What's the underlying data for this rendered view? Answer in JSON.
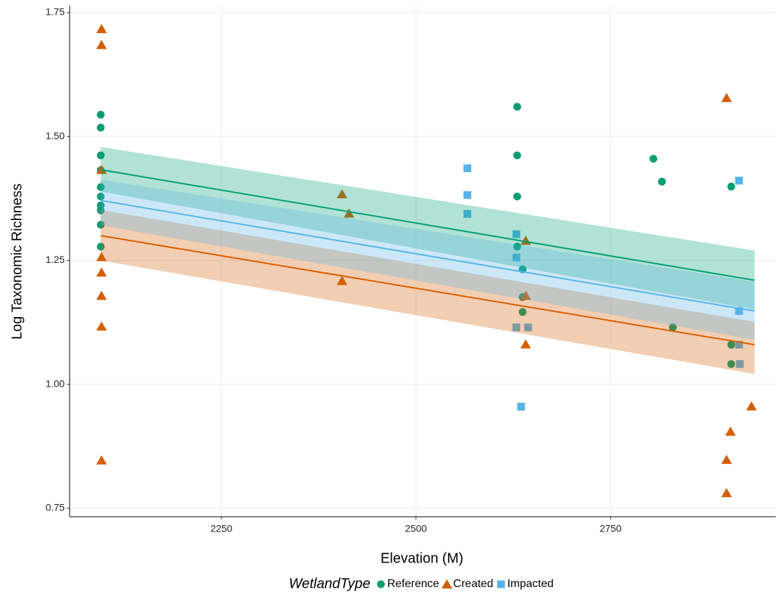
{
  "chart_data": {
    "type": "scatter",
    "x_label": "Elevation (M)",
    "y_label": "Log Taxonomic Richness",
    "legend_title": "WetlandType",
    "xlim": [
      2055,
      2962
    ],
    "ylim": [
      0.733,
      1.764
    ],
    "xticks": [
      2250,
      2500,
      2750
    ],
    "yticks": [
      {
        "value": 0.75,
        "label": "0.75"
      },
      {
        "value": 1.0,
        "label": "1.00"
      },
      {
        "value": 1.25,
        "label": "1.25"
      },
      {
        "value": 1.5,
        "label": "1.50"
      },
      {
        "value": 1.75,
        "label": "1.75"
      }
    ],
    "grid": true,
    "legend_position": "bottom",
    "series": [
      {
        "name": "Reference",
        "color": "#009E73",
        "shape": "circle",
        "x": [
          2095,
          2095,
          2095,
          2095,
          2095,
          2095,
          2095,
          2095,
          2095,
          2095,
          2630,
          2630,
          2630,
          2630,
          2637,
          2637,
          2637,
          2805,
          2816,
          2830,
          2905,
          2905,
          2905
        ],
        "values": [
          1.544,
          1.518,
          1.462,
          1.432,
          1.398,
          1.379,
          1.361,
          1.351,
          1.322,
          1.278,
          1.56,
          1.462,
          1.379,
          1.278,
          1.232,
          1.176,
          1.146,
          1.455,
          1.409,
          1.115,
          1.399,
          1.08,
          1.041
        ],
        "fit": {
          "x": [
            2095,
            2935
          ],
          "y": [
            1.433,
            1.21
          ],
          "lower": [
            1.389,
            1.151
          ],
          "upper": [
            1.479,
            1.27
          ]
        }
      },
      {
        "name": "Created",
        "color": "#D55E00",
        "shape": "triangle",
        "x": [
          2096,
          2096,
          2096,
          2096,
          2096,
          2096,
          2096,
          2096,
          2405,
          2414,
          2405,
          2641,
          2641,
          2641,
          2899,
          2904,
          2899,
          2899,
          2931
        ],
        "values": [
          1.717,
          1.685,
          1.433,
          1.257,
          1.226,
          1.179,
          1.117,
          0.847,
          1.384,
          1.345,
          1.209,
          1.29,
          1.179,
          1.081,
          1.578,
          0.905,
          0.848,
          0.781,
          0.956
        ],
        "fit": {
          "x": [
            2095,
            2935
          ],
          "y": [
            1.3,
            1.08
          ],
          "lower": [
            1.25,
            1.021
          ],
          "upper": [
            1.352,
            1.126
          ]
        }
      },
      {
        "name": "Impacted",
        "color": "#56B4E9",
        "shape": "square",
        "x": [
          2566,
          2566,
          2566,
          2629,
          2629,
          2629,
          2644,
          2635,
          2915,
          2915,
          2915,
          2916
        ],
        "values": [
          1.436,
          1.382,
          1.344,
          1.303,
          1.256,
          1.115,
          1.115,
          0.955,
          1.411,
          1.148,
          1.08,
          1.041
        ],
        "fit": {
          "x": [
            2095,
            2935
          ],
          "y": [
            1.371,
            1.148
          ],
          "lower": [
            1.321,
            1.09
          ],
          "upper": [
            1.413,
            1.207
          ]
        }
      }
    ]
  }
}
